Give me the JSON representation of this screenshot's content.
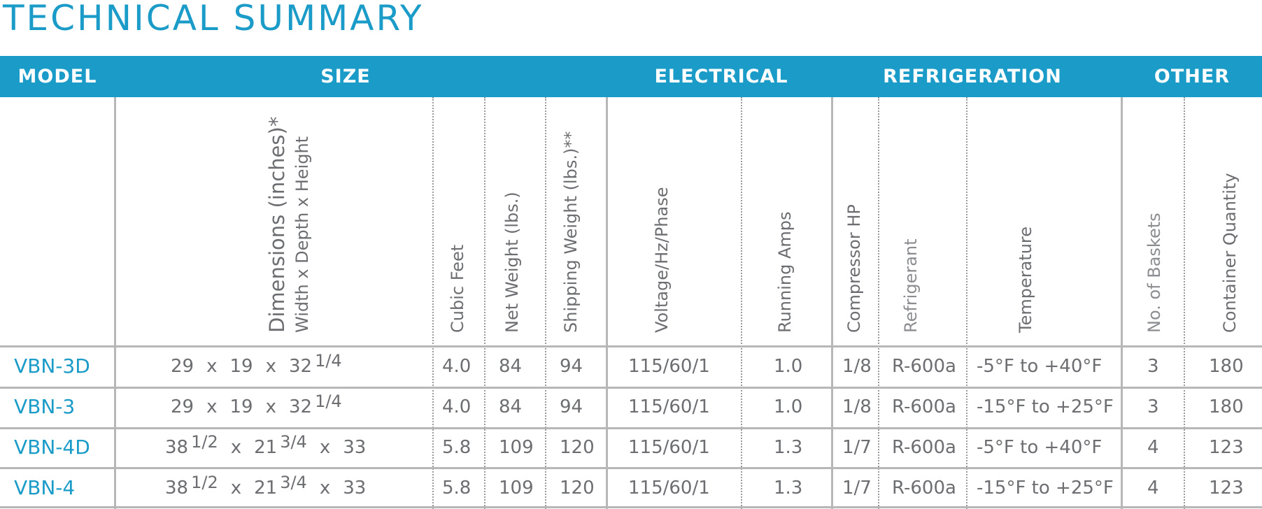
{
  "title": "TECHNICAL SUMMARY",
  "sections": {
    "model": "MODEL",
    "size": "SIZE",
    "electrical": "ELECTRICAL",
    "refrigeration": "REFRIGERATION",
    "other": "OTHER"
  },
  "headers": {
    "dimensions": "Dimensions (inches)*",
    "dimensions_sub": "Width x Depth x Height",
    "cubic_feet": "Cubic Feet",
    "net_weight": "Net Weight (lbs.)",
    "shipping_weight": "Shipping Weight (lbs.)**",
    "voltage": "Voltage/Hz/Phase",
    "running_amps": "Running Amps",
    "compressor_hp": "Compressor HP",
    "refrigerant": "Refrigerant",
    "temperature": "Temperature",
    "baskets": "No. of Baskets",
    "container_qty": "Container Quantity"
  },
  "rows": [
    {
      "model": "VBN-3D",
      "width": "29",
      "width_frac": "",
      "depth": "19",
      "depth_frac": "",
      "height": "32",
      "height_frac": "1/4",
      "cubic_feet": "4.0",
      "net_weight": "84",
      "shipping_weight": "94",
      "voltage": "115/60/1",
      "running_amps": "1.0",
      "compressor_hp": "1/8",
      "refrigerant": "R-600a",
      "temperature": "-5°F to +40°F",
      "baskets": "3",
      "container_qty": "180"
    },
    {
      "model": "VBN-3",
      "width": "29",
      "width_frac": "",
      "depth": "19",
      "depth_frac": "",
      "height": "32",
      "height_frac": "1/4",
      "cubic_feet": "4.0",
      "net_weight": "84",
      "shipping_weight": "94",
      "voltage": "115/60/1",
      "running_amps": "1.0",
      "compressor_hp": "1/8",
      "refrigerant": "R-600a",
      "temperature": "-15°F to +25°F",
      "baskets": "3",
      "container_qty": "180"
    },
    {
      "model": "VBN-4D",
      "width": "38",
      "width_frac": "1/2",
      "depth": "21",
      "depth_frac": "3/4",
      "height": "33",
      "height_frac": "",
      "cubic_feet": "5.8",
      "net_weight": "109",
      "shipping_weight": "120",
      "voltage": "115/60/1",
      "running_amps": "1.3",
      "compressor_hp": "1/7",
      "refrigerant": "R-600a",
      "temperature": "-5°F to +40°F",
      "baskets": "4",
      "container_qty": "123"
    },
    {
      "model": "VBN-4",
      "width": "38",
      "width_frac": "1/2",
      "depth": "21",
      "depth_frac": "3/4",
      "height": "33",
      "height_frac": "",
      "cubic_feet": "5.8",
      "net_weight": "109",
      "shipping_weight": "120",
      "voltage": "115/60/1",
      "running_amps": "1.3",
      "compressor_hp": "1/7",
      "refrigerant": "R-600a",
      "temperature": "-15°F to +25°F",
      "baskets": "4",
      "container_qty": "123"
    }
  ],
  "dimension_separator": "x"
}
